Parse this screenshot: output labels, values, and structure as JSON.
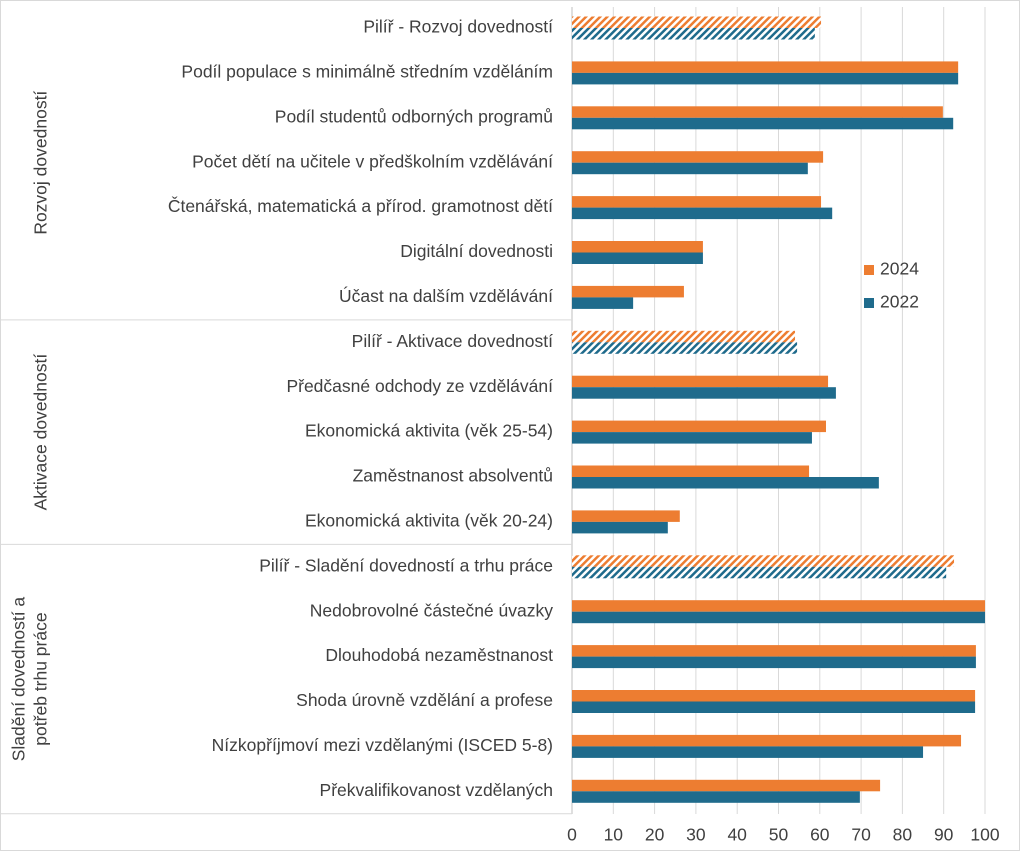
{
  "chart_data": {
    "type": "bar",
    "orientation": "horizontal",
    "groups": [
      {
        "name": [
          "Rozvoj dovedností"
        ],
        "categories": [
          "Pilíř - Rozvoj dovedností",
          "Podíl populace s minimálně středním vzděláním",
          "Podíl studentů odborných programů",
          "Počet dětí na učitele v předškolním vzdělávání",
          "Čtenářská, matematická a přírod. gramotnost dětí",
          "Digitální dovednosti",
          "Účast na dalším vzdělávání"
        ]
      },
      {
        "name": [
          "Aktivace dovedností"
        ],
        "categories": [
          "Pilíř - Aktivace dovedností",
          "Předčasné odchody ze vzdělávání",
          "Ekonomická aktivita (věk 25-54)",
          "Zaměstnanost absolventů",
          "Ekonomická aktivita (věk 20-24)"
        ]
      },
      {
        "name": [
          "Sladění dovedností a",
          "potřeb trhu práce"
        ],
        "categories": [
          "Pilíř - Sladění dovedností a trhu práce",
          "Nedobrovolné částečné úvazky",
          "Dlouhodobá nezaměstnanost",
          "Shoda úrovně vzdělání a profese",
          "Nízkopříjmoví mezi vzdělanými (ISCED 5-8)",
          "Překvalifikovanost vzdělaných"
        ]
      }
    ],
    "series": [
      {
        "name": "2024",
        "color": "#ed7d31",
        "values": [
          60.3,
          93.5,
          89.8,
          60.8,
          60.3,
          31.7,
          27.1,
          54.0,
          62.0,
          61.5,
          57.4,
          26.1,
          92.5,
          100,
          97.8,
          97.6,
          94.2,
          74.6
        ]
      },
      {
        "name": "2022",
        "color": "#1f6b8c",
        "values": [
          58.8,
          93.5,
          92.3,
          57.1,
          63.0,
          31.7,
          14.8,
          54.5,
          63.9,
          58.1,
          74.3,
          23.2,
          90.6,
          100,
          97.8,
          97.6,
          85.0,
          69.7
        ]
      }
    ],
    "xlim": [
      0,
      100
    ],
    "xticks": [
      0,
      10,
      20,
      30,
      40,
      50,
      60,
      70,
      80,
      90,
      100
    ],
    "grid": true
  }
}
